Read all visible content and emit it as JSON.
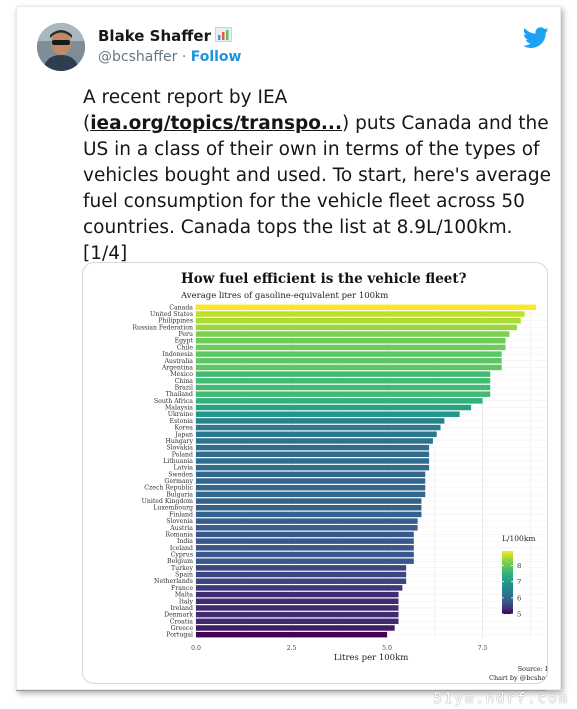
{
  "tweet": {
    "author_name": "Blake Shaffer",
    "author_handle": "@bcshaffer",
    "separator": "·",
    "follow_label": "Follow",
    "text_before_link": "A recent report by IEA (",
    "link_text": "iea.org/topics/transpo...",
    "text_after_link": ") puts Canada and the US in a class of their own in terms of the types of vehicles bought and used. To start, here's average fuel consumption for the vehicle fleet across 50 countries. Canada tops the list at 8.9L/100km.",
    "thread_counter": "[1/4]"
  },
  "watermark": "51ym.ndrf.com",
  "icons": {
    "author_badge": "bar-chart-emoji-icon",
    "brand": "twitter-bird-icon"
  },
  "colors": {
    "twitter_blue": "#1da1f2",
    "follow_blue": "#1b95e0"
  },
  "chart_data": {
    "type": "bar",
    "orientation": "horizontal",
    "title": "How fuel efficient is the vehicle fleet?",
    "subtitle": "Average litres of gasoline-equivalent per 100km",
    "xlabel": "Litres per 100km",
    "ylabel": "",
    "xlim": [
      0,
      9.5
    ],
    "xticks": [
      "0.0",
      "2.5",
      "5.0",
      "7.5"
    ],
    "grid": true,
    "legend": {
      "title": "L/100km",
      "ticks": [
        "8",
        "7",
        "6",
        "5"
      ],
      "placement": "right"
    },
    "source": "Source: IEA",
    "credit": "Chart by @bcshaffer",
    "categories": [
      "Canada",
      "United States",
      "Philippines",
      "Russian Federation",
      "Peru",
      "Egypt",
      "Chile",
      "Indonesia",
      "Australia",
      "Argentina",
      "Mexico",
      "China",
      "Brazil",
      "Thailand",
      "South Africa",
      "Malaysia",
      "Ukraine",
      "Estonia",
      "Korea",
      "Japan",
      "Hungary",
      "Slovakia",
      "Poland",
      "Lithuania",
      "Latvia",
      "Sweden",
      "Germany",
      "Czech Republic",
      "Bulgaria",
      "United Kingdom",
      "Luxembourg",
      "Finland",
      "Slovenia",
      "Austria",
      "Romania",
      "India",
      "Iceland",
      "Cyprus",
      "Belgium",
      "Turkey",
      "Spain",
      "Netherlands",
      "France",
      "Malta",
      "Italy",
      "Ireland",
      "Denmark",
      "Croatia",
      "Greece",
      "Portugal"
    ],
    "values": [
      8.9,
      8.6,
      8.5,
      8.4,
      8.2,
      8.1,
      8.1,
      8.0,
      8.0,
      8.0,
      7.7,
      7.7,
      7.7,
      7.7,
      7.5,
      7.2,
      6.9,
      6.5,
      6.4,
      6.3,
      6.2,
      6.1,
      6.1,
      6.1,
      6.1,
      6.0,
      6.0,
      6.0,
      6.0,
      5.9,
      5.9,
      5.9,
      5.8,
      5.8,
      5.7,
      5.7,
      5.7,
      5.7,
      5.7,
      5.5,
      5.5,
      5.5,
      5.4,
      5.3,
      5.3,
      5.3,
      5.3,
      5.3,
      5.2,
      5.0
    ]
  }
}
